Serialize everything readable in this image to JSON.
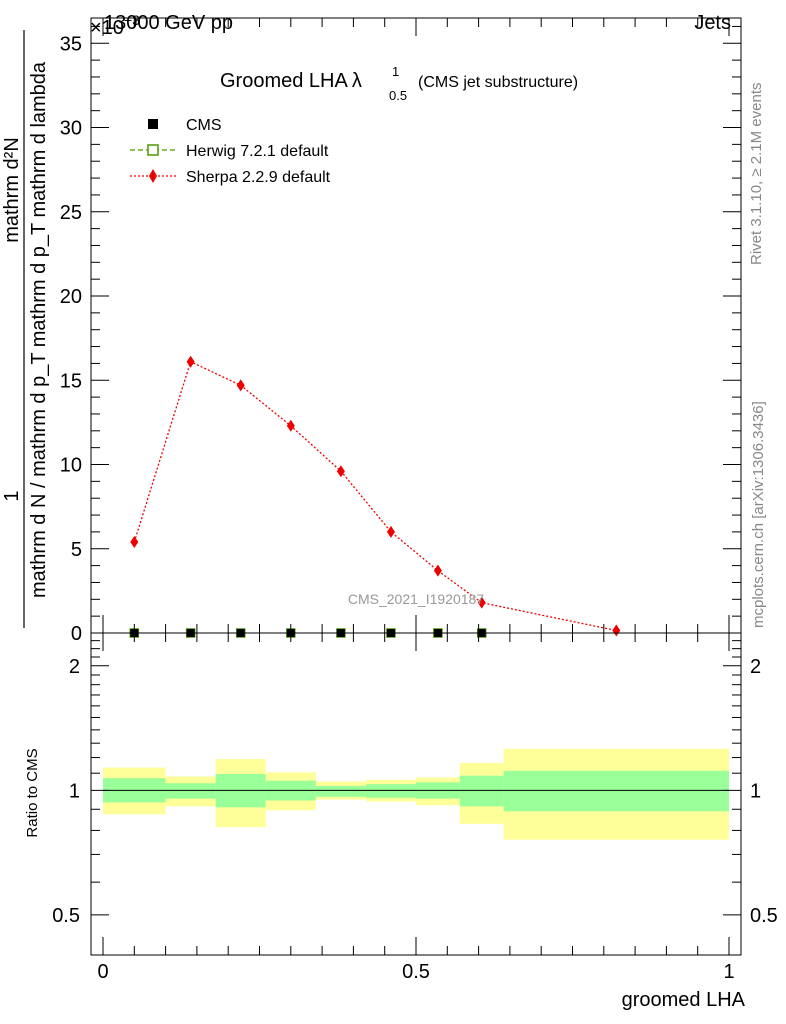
{
  "header": {
    "left": "13000 GeV pp",
    "right": "Jets",
    "exponent_base": "×10",
    "exponent_power": "−3"
  },
  "side_labels": {
    "rivet": "Rivet 3.1.10, ≥ 2.1M events",
    "mcplots": "mcplots.cern.ch [arXiv:1306.3436]"
  },
  "watermark": "CMS_2021_I1920187",
  "chart_data": [
    {
      "type": "line",
      "title": "Groomed LHA",
      "title_symbol": "λ",
      "title_sup": "1",
      "title_sub": "0.5",
      "title_note": "(CMS jet substructure)",
      "ylabel_numerator": "mathrm d²N",
      "ylabel_denominator": "mathrm d N / mathrm d p_T mathrm d p_T mathrm d lambda",
      "ylabel_one": "1",
      "xlim": [
        0,
        1
      ],
      "ylim": [
        0,
        36.5
      ],
      "yticks": [
        0,
        5,
        10,
        15,
        20,
        25,
        30,
        35
      ],
      "ytick_labels": [
        "0",
        "5",
        "10",
        "15",
        "20",
        "25",
        "30",
        "35"
      ],
      "legend_position": "top-left",
      "series": [
        {
          "name": "CMS",
          "color": "#000000",
          "marker": "square",
          "x": [
            0.05,
            0.14,
            0.22,
            0.3,
            0.38,
            0.46,
            0.535,
            0.605
          ],
          "y": [
            0,
            0,
            0,
            0,
            0,
            0,
            0,
            0
          ]
        },
        {
          "name": "Herwig 7.2.1 default",
          "color": "#4c9a00",
          "marker": "open-square",
          "x": [
            0.05,
            0.14,
            0.22,
            0.3,
            0.38,
            0.46,
            0.535,
            0.605
          ],
          "y": [
            0,
            0,
            0,
            0,
            0,
            0,
            0,
            0
          ]
        },
        {
          "name": "Sherpa 2.2.9 default",
          "color": "#ee0000",
          "marker": "diamond",
          "x": [
            0.05,
            0.14,
            0.22,
            0.3,
            0.38,
            0.46,
            0.535,
            0.605,
            0.82
          ],
          "y": [
            5.4,
            16.1,
            14.7,
            12.3,
            9.6,
            6.0,
            3.7,
            1.8,
            0.15
          ]
        }
      ]
    },
    {
      "type": "area",
      "ylabel": "Ratio to CMS",
      "xlabel": "groomed LHA",
      "xlim": [
        0,
        1
      ],
      "ylim": [
        0.4,
        2.4
      ],
      "xticks": [
        0,
        0.5,
        1
      ],
      "xtick_labels": [
        "0",
        "0.5",
        "1"
      ],
      "yticks": [
        0.5,
        1,
        2
      ],
      "ytick_labels": [
        "0.5",
        "1",
        "2"
      ],
      "bands": [
        {
          "x0": 0.0,
          "x1": 0.1,
          "inner": [
            0.935,
            1.07
          ],
          "outer": [
            0.875,
            1.135
          ]
        },
        {
          "x0": 0.1,
          "x1": 0.18,
          "inner": [
            0.955,
            1.04
          ],
          "outer": [
            0.915,
            1.08
          ]
        },
        {
          "x0": 0.18,
          "x1": 0.26,
          "inner": [
            0.91,
            1.095
          ],
          "outer": [
            0.815,
            1.19
          ]
        },
        {
          "x0": 0.26,
          "x1": 0.34,
          "inner": [
            0.945,
            1.055
          ],
          "outer": [
            0.895,
            1.105
          ]
        },
        {
          "x0": 0.34,
          "x1": 0.42,
          "inner": [
            0.965,
            1.025
          ],
          "outer": [
            0.95,
            1.05
          ]
        },
        {
          "x0": 0.42,
          "x1": 0.5,
          "inner": [
            0.96,
            1.035
          ],
          "outer": [
            0.94,
            1.06
          ]
        },
        {
          "x0": 0.5,
          "x1": 0.57,
          "inner": [
            0.955,
            1.045
          ],
          "outer": [
            0.92,
            1.075
          ]
        },
        {
          "x0": 0.57,
          "x1": 0.64,
          "inner": [
            0.915,
            1.085
          ],
          "outer": [
            0.83,
            1.165
          ]
        },
        {
          "x0": 0.64,
          "x1": 1.0,
          "inner": [
            0.89,
            1.115
          ],
          "outer": [
            0.76,
            1.26
          ]
        }
      ],
      "inner_color": "#99ff99",
      "outer_color": "#ffff99",
      "reference_line": 1
    }
  ]
}
